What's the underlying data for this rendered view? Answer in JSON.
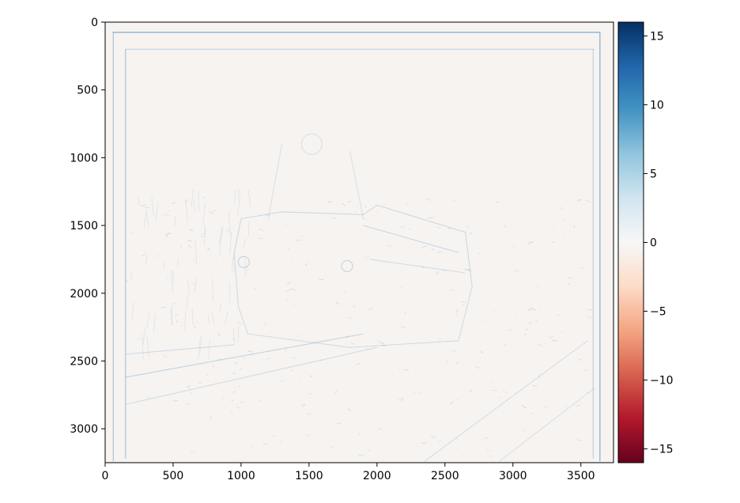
{
  "chart_data": {
    "type": "heatmap",
    "title": "",
    "xlabel": "",
    "ylabel": "",
    "x_range": [
      0,
      3740
    ],
    "y_range": [
      3250,
      0
    ],
    "x_ticks": [
      0,
      500,
      1000,
      1500,
      2000,
      2500,
      3000,
      3500
    ],
    "x_tick_labels": [
      "0",
      "500",
      "1000",
      "1500",
      "2000",
      "2500",
      "3000",
      "3500"
    ],
    "y_ticks": [
      0,
      500,
      1000,
      1500,
      2000,
      2500,
      3000
    ],
    "y_tick_labels": [
      "0",
      "500",
      "1000",
      "1500",
      "2000",
      "2500",
      "3000"
    ],
    "colormap": "RdBu",
    "colorbar": {
      "range": [
        -16,
        16
      ],
      "ticks": [
        15,
        10,
        5,
        0,
        -5,
        -10,
        -15
      ],
      "tick_labels": [
        "15",
        "10",
        "5",
        "0",
        "−5",
        "−10",
        "−15"
      ],
      "colors_low_to_high": [
        "#67001f",
        "#b2182b",
        "#d6604d",
        "#f4a582",
        "#fddbc7",
        "#f7f7f7",
        "#d1e5f0",
        "#92c5de",
        "#4393c3",
        "#2166ac",
        "#053061"
      ]
    },
    "dominant_value": -0.3,
    "background_color": "#f7f3f0",
    "edge_color": "#4a90c2",
    "grid": false
  }
}
